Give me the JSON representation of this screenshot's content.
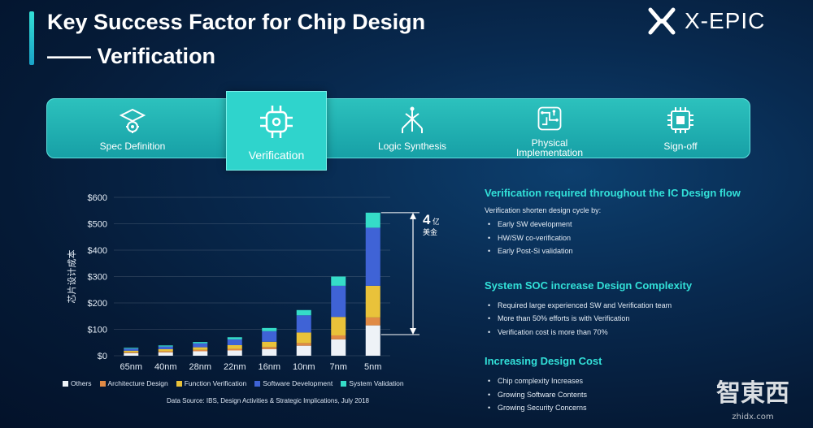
{
  "header": {
    "title_line1": "Key Success Factor for Chip Design",
    "title_line2": "—— Verification",
    "logo_text": "X-EPIC"
  },
  "steps": [
    {
      "label": "Spec Definition",
      "icon": "graduation-cap-gear-icon",
      "active": false
    },
    {
      "label": "Verification",
      "icon": "chip-circuit-icon",
      "active": true
    },
    {
      "label": "Logic Synthesis",
      "icon": "logic-tree-icon",
      "active": false
    },
    {
      "label": "Physical Implementation",
      "icon": "routing-grid-icon",
      "active": false
    },
    {
      "label": "Sign-off",
      "icon": "chip-icon",
      "active": false
    }
  ],
  "chart_data": {
    "type": "bar",
    "stacked": true,
    "ylabel": "芯片设计成本",
    "ylim": [
      0,
      600
    ],
    "yticks": [
      "$0",
      "$100",
      "$200",
      "$300",
      "$400",
      "$500",
      "$600"
    ],
    "categories": [
      "65nm",
      "40nm",
      "28nm",
      "22nm",
      "16nm",
      "10nm",
      "7nm",
      "5nm"
    ],
    "series": [
      {
        "name": "Others",
        "color": "#eef2f7",
        "values": [
          10,
          13,
          17,
          20,
          25,
          38,
          62,
          115
        ]
      },
      {
        "name": "Architecture Design",
        "color": "#e08a45",
        "values": [
          3,
          4,
          5,
          6,
          8,
          10,
          15,
          30
        ]
      },
      {
        "name": "Function Verification",
        "color": "#e9c23a",
        "values": [
          6,
          8,
          10,
          14,
          20,
          40,
          70,
          120
        ]
      },
      {
        "name": "Software Development",
        "color": "#3f63d6",
        "values": [
          8,
          10,
          15,
          22,
          40,
          65,
          118,
          220
        ]
      },
      {
        "name": "System Validation",
        "color": "#35dcc8",
        "values": [
          3,
          4,
          5,
          8,
          12,
          20,
          35,
          57
        ]
      }
    ],
    "annotation": {
      "value": "4",
      "unit": "亿",
      "currency": "美金"
    }
  },
  "source": "Data Source: IBS, Design Activities & Strategic Implications, July 2018",
  "sections": [
    {
      "heading": "Verification required throughout the IC Design flow",
      "intro": "Verification shorten design cycle by:",
      "bullets": [
        "Early SW development",
        "HW/SW co-verification",
        "Early Post-Si validation"
      ]
    },
    {
      "heading": "System SOC increase Design Complexity",
      "bullets": [
        "Required large experienced SW and  Verification team",
        "More than 50% efforts is with Verification",
        "Verification cost is more than 70%"
      ]
    },
    {
      "heading": "Increasing Design Cost",
      "bullets": [
        "Chip complexity Increases",
        "Growing Software Contents",
        "Growing Security Concerns"
      ]
    }
  ],
  "watermark": {
    "text": "智東西",
    "sub": "zhidx.com"
  }
}
